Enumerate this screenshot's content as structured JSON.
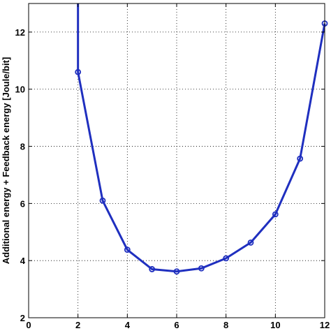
{
  "chart_data": {
    "type": "line",
    "title": "",
    "xlabel": "",
    "ylabel": "Additional energy + Feedback energy [Joule/bit]",
    "xlim": [
      0,
      12
    ],
    "ylim": [
      2,
      13
    ],
    "xticks": [
      0,
      2,
      4,
      6,
      8,
      10,
      12
    ],
    "yticks": [
      2,
      4,
      6,
      8,
      10,
      12
    ],
    "xtick_labels": [
      "0",
      "2",
      "4",
      "6",
      "8",
      "10",
      "12"
    ],
    "ytick_labels": [
      "2",
      "4",
      "6",
      "8",
      "10",
      "12"
    ],
    "grid": true,
    "series": [
      {
        "color": "#1f2fbf",
        "marker": "circle",
        "x": [
          2,
          2,
          3,
          4,
          5,
          6,
          7,
          8,
          9,
          10,
          11,
          12
        ],
        "y": [
          13,
          10.6,
          6.1,
          4.38,
          3.7,
          3.62,
          3.73,
          4.08,
          4.63,
          5.62,
          7.57,
          12.3
        ]
      }
    ]
  }
}
